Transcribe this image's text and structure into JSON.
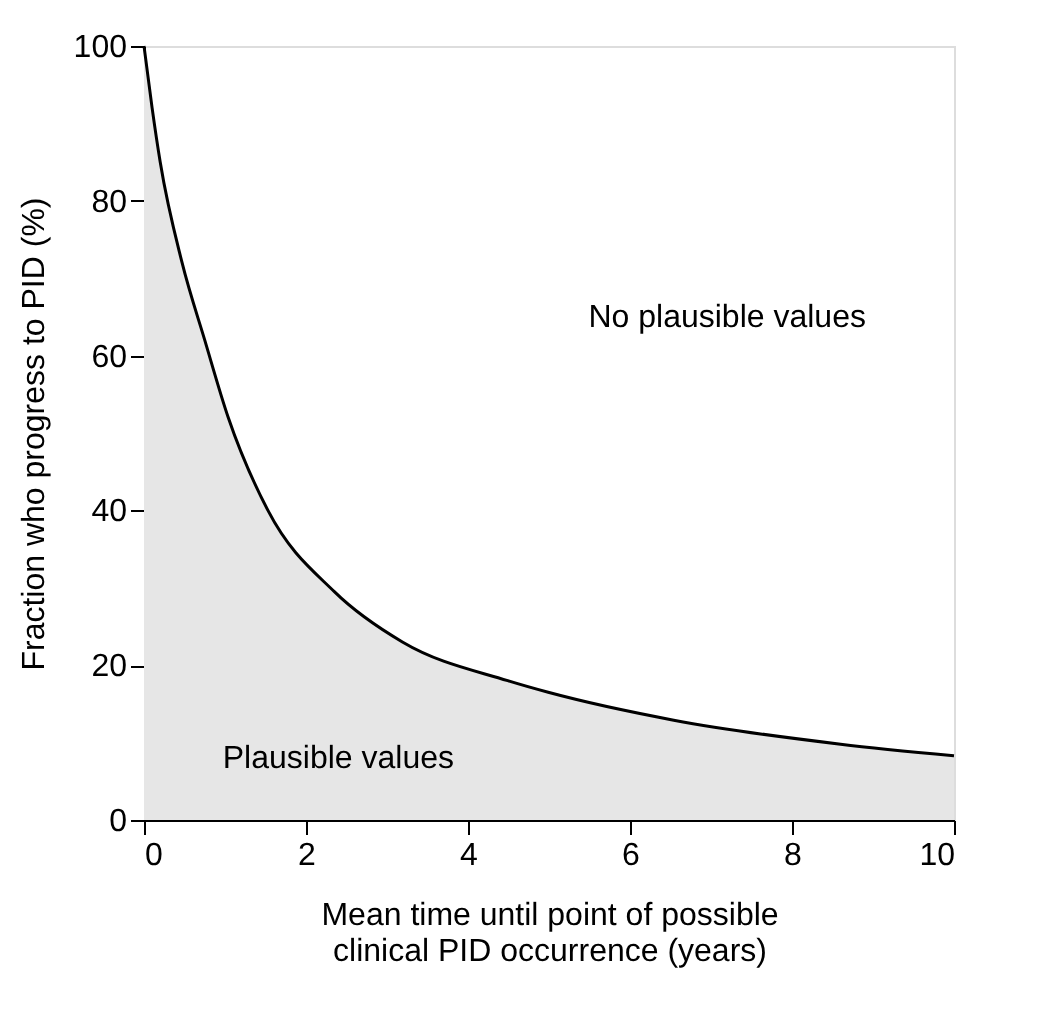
{
  "chart_data": {
    "type": "area",
    "xlabel": "Mean time until point of possible\nclinical PID occurrence (years)",
    "ylabel": "Fraction who progress to PID (%)",
    "x": [
      0,
      0.1,
      0.2,
      0.47,
      0.75,
      1.04,
      1.53,
      2.35,
      3.19,
      4.49,
      4.99,
      6.54,
      8.6,
      10
    ],
    "series": [
      {
        "color": "#e6e6e6",
        "values": [
          100,
          92,
          85,
          72,
          62,
          52,
          40,
          29.5,
          23,
          18,
          16.5,
          12.9,
          9.8,
          8.3
        ]
      }
    ],
    "xlim": [
      0,
      10
    ],
    "xticks": [
      0,
      2,
      4,
      6,
      8,
      10
    ],
    "ylim": [
      0,
      100
    ],
    "yticks": [
      0,
      20,
      40,
      60,
      80,
      100
    ],
    "grid": false,
    "annotations": [
      "No plausible values",
      "Plausible values"
    ]
  }
}
